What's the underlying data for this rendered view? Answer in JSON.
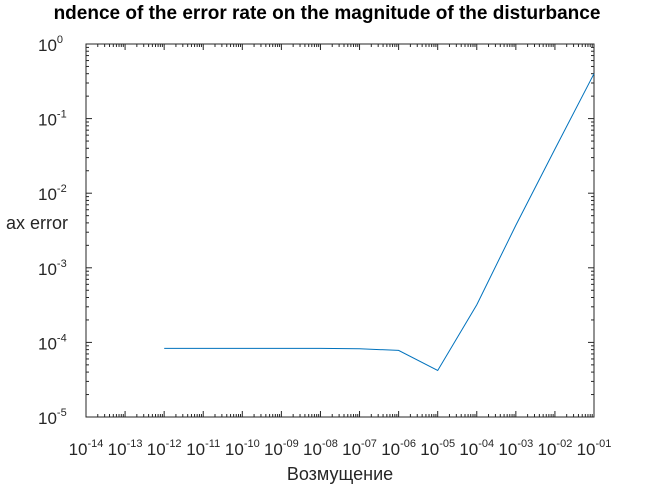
{
  "chart_data": {
    "type": "line",
    "title": "ndence of the error rate on the magnitude of the disturbance",
    "xlabel": "Возмущение",
    "ylabel": "ax error",
    "x_scale": "log",
    "y_scale": "log",
    "xlim": [
      1e-14,
      0.1
    ],
    "ylim": [
      1e-05,
      1
    ],
    "grid": false,
    "x_ticks": [
      {
        "base": "10",
        "exp": "-14"
      },
      {
        "base": "10",
        "exp": "-13"
      },
      {
        "base": "10",
        "exp": "-12"
      },
      {
        "base": "10",
        "exp": "-11"
      },
      {
        "base": "10",
        "exp": "-10"
      },
      {
        "base": "10",
        "exp": "-09"
      },
      {
        "base": "10",
        "exp": "-08"
      },
      {
        "base": "10",
        "exp": "-07"
      },
      {
        "base": "10",
        "exp": "-06"
      },
      {
        "base": "10",
        "exp": "-05"
      },
      {
        "base": "10",
        "exp": "-04"
      },
      {
        "base": "10",
        "exp": "-03"
      },
      {
        "base": "10",
        "exp": "-02"
      },
      {
        "base": "10",
        "exp": "-01"
      }
    ],
    "y_ticks": [
      {
        "base": "10",
        "exp": "0"
      },
      {
        "base": "10",
        "exp": "-1"
      },
      {
        "base": "10",
        "exp": "-2"
      },
      {
        "base": "10",
        "exp": "-3"
      },
      {
        "base": "10",
        "exp": "-4"
      },
      {
        "base": "10",
        "exp": "-5"
      }
    ],
    "series": [
      {
        "color": "#0072BD",
        "x": [
          1e-12,
          1e-11,
          1e-10,
          1e-09,
          1e-08,
          1e-07,
          1e-06,
          1e-05,
          0.0001,
          0.001,
          0.01,
          0.1
        ],
        "y": [
          8.3e-05,
          8.3e-05,
          8.3e-05,
          8.3e-05,
          8.3e-05,
          8.2e-05,
          7.8e-05,
          4.2e-05,
          0.00032,
          0.0037,
          0.039,
          0.4
        ]
      }
    ]
  }
}
